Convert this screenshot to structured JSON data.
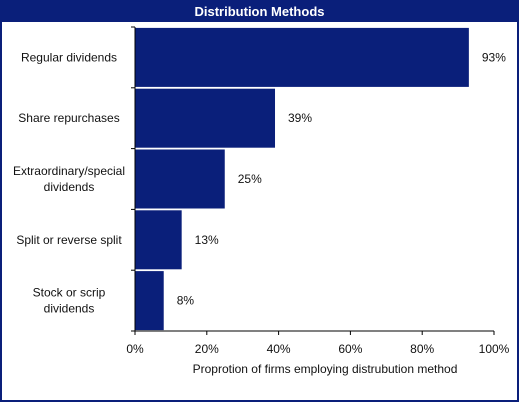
{
  "chart_data": {
    "type": "bar",
    "orientation": "horizontal",
    "title": "Distribution Methods",
    "xlabel": "Proprotion of firms employing distrubution method",
    "ylabel": "",
    "xlim": [
      0,
      100
    ],
    "categories": [
      "Regular dividends",
      "Share repurchases",
      "Extraordinary/special dividends",
      "Split or reverse split",
      "Stock or scrip dividends"
    ],
    "category_lines": [
      [
        "Regular dividends"
      ],
      [
        "Share repurchases"
      ],
      [
        "Extraordinary/special",
        "dividends"
      ],
      [
        "Split or reverse split"
      ],
      [
        "Stock or scrip",
        "dividends"
      ]
    ],
    "values": [
      93,
      39,
      25,
      13,
      8
    ],
    "value_labels": [
      "93%",
      "39%",
      "25%",
      "13%",
      "8%"
    ],
    "x_ticks": [
      0,
      20,
      40,
      60,
      80,
      100
    ],
    "x_tick_labels": [
      "0%",
      "20%",
      "40%",
      "60%",
      "80%",
      "100%"
    ],
    "grid": false,
    "colors": {
      "bar": "#0a1f7a",
      "frame": "#0a1f7a",
      "title_text": "#ffffff"
    }
  }
}
